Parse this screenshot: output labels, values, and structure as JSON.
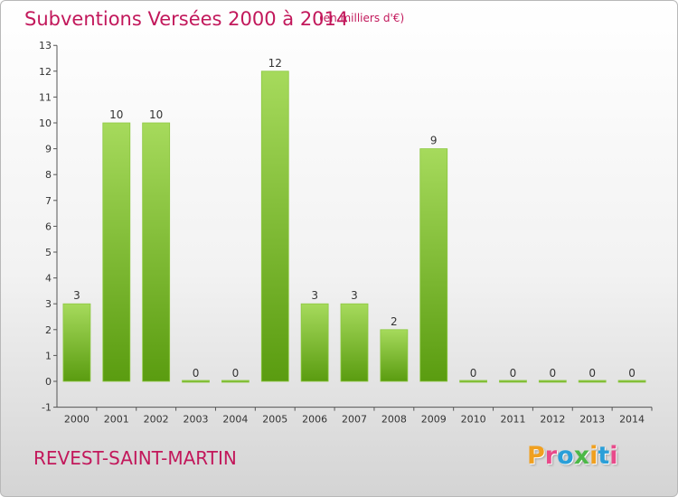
{
  "header": {
    "title": "Subventions Versées 2000 à 2014",
    "subtitle": "(en milliers d'€)"
  },
  "footer": {
    "place": "REVEST-SAINT-MARTIN",
    "logo": "Proxiti",
    "logo_colors": [
      "#f0a020",
      "#e84a8a",
      "#2a9fd8",
      "#4cb848",
      "#f0a020",
      "#2a9fd8",
      "#e84a8a"
    ]
  },
  "colors": {
    "title": "#c2185b",
    "bar_light": "#9fd652",
    "bar_dark": "#5a9c10",
    "axis": "#555555"
  },
  "chart_data": {
    "type": "bar",
    "title": "Subventions Versées 2000 à 2014",
    "xlabel": "",
    "ylabel": "",
    "ylim": [
      -1,
      13
    ],
    "yticks": [
      -1,
      0,
      1,
      2,
      3,
      4,
      5,
      6,
      7,
      8,
      9,
      10,
      11,
      12,
      13
    ],
    "categories": [
      "2000",
      "2001",
      "2002",
      "2003",
      "2004",
      "2005",
      "2006",
      "2007",
      "2008",
      "2009",
      "2010",
      "2011",
      "2012",
      "2013",
      "2014"
    ],
    "values": [
      3,
      10,
      10,
      0,
      0,
      12,
      3,
      3,
      2,
      9,
      0,
      0,
      0,
      0,
      0
    ],
    "grid": false,
    "legend": "none"
  }
}
